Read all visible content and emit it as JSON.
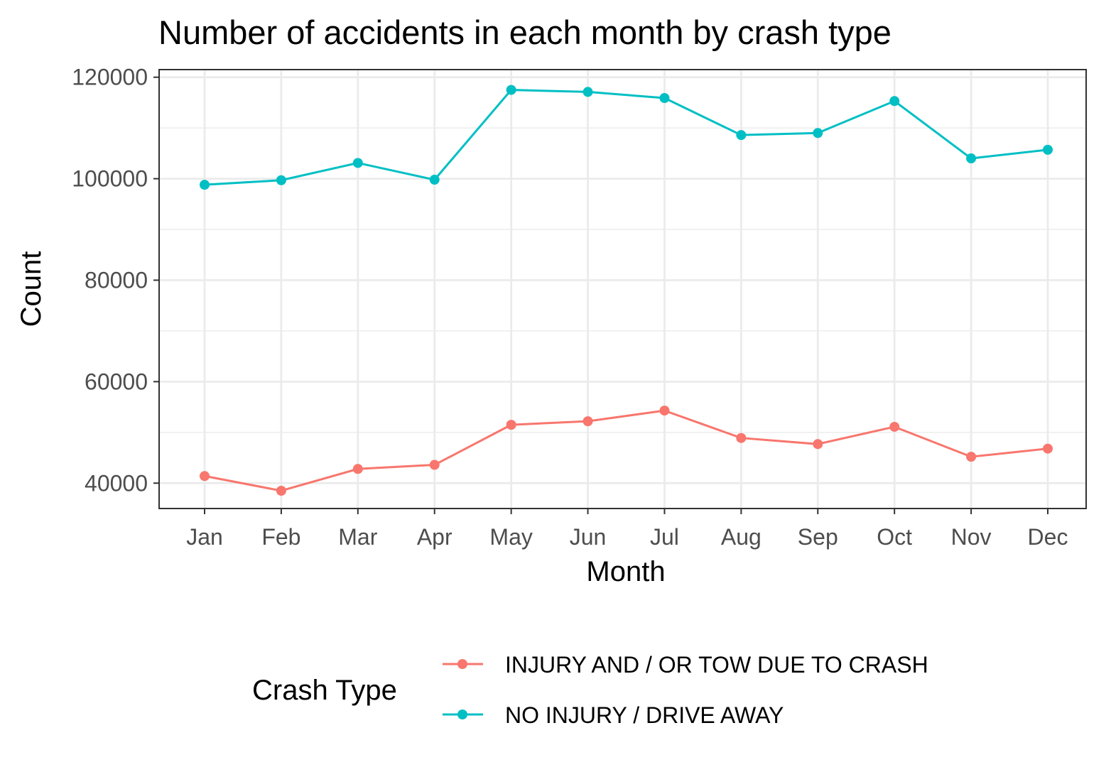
{
  "chart_data": {
    "type": "line",
    "title": "Number of accidents in each month by crash type",
    "xlabel": "Month",
    "ylabel": "Count",
    "categories": [
      "Jan",
      "Feb",
      "Mar",
      "Apr",
      "May",
      "Jun",
      "Jul",
      "Aug",
      "Sep",
      "Oct",
      "Nov",
      "Dec"
    ],
    "ylim": [
      35000,
      121500
    ],
    "yticks": [
      40000,
      60000,
      80000,
      100000,
      120000
    ],
    "yticks_minor": [
      50000,
      70000,
      90000,
      110000
    ],
    "grid": true,
    "legend": {
      "title": "Crash Type",
      "position": "bottom"
    },
    "series": [
      {
        "name": "INJURY AND / OR TOW DUE TO CRASH",
        "color": "#F8766D",
        "values": [
          41400,
          38500,
          42800,
          43600,
          51500,
          52200,
          54300,
          48900,
          47700,
          51100,
          45200,
          46800
        ]
      },
      {
        "name": "NO INJURY / DRIVE AWAY",
        "color": "#00BFC4",
        "values": [
          98800,
          99700,
          103100,
          99800,
          117500,
          117100,
          115900,
          108600,
          109000,
          115300,
          104000,
          105700
        ]
      }
    ]
  }
}
